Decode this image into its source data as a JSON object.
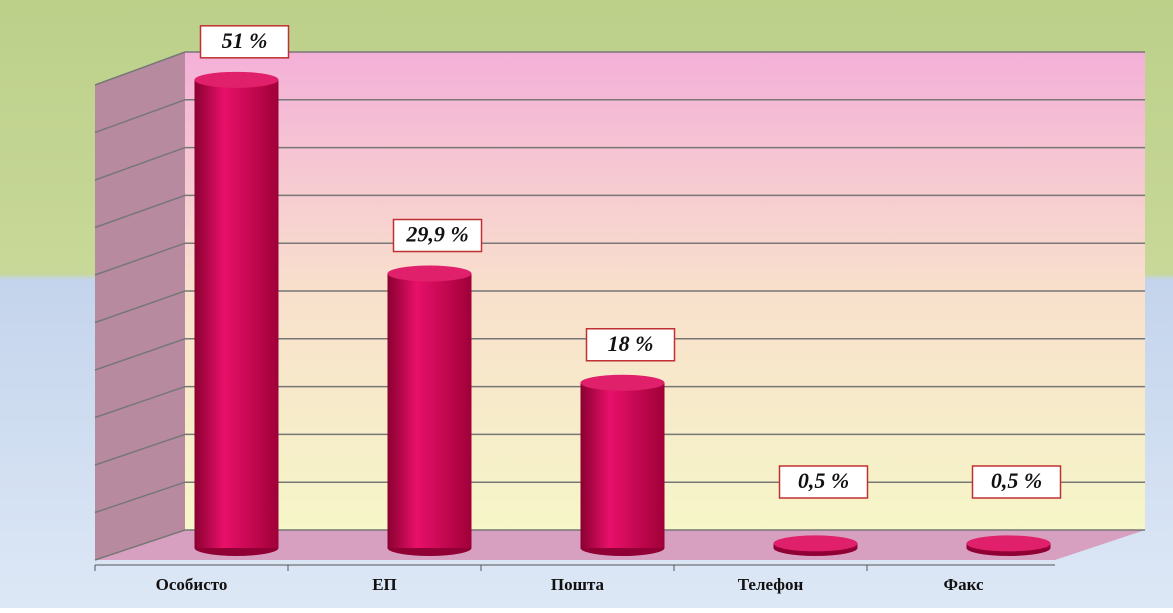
{
  "chart_data": {
    "type": "bar",
    "categories": [
      "Особисто",
      "ЕП",
      "Пошта",
      "Телефон",
      "Факс"
    ],
    "values": [
      51,
      29.9,
      18,
      0.5,
      0.5
    ],
    "value_labels": [
      "51 %",
      "29,9 %",
      "18 %",
      "0,5 %",
      "0,5 %"
    ],
    "color": "#d4004a",
    "ylim": [
      0,
      50
    ],
    "yticks": [
      0,
      5,
      10,
      15,
      20,
      25,
      30,
      35,
      40,
      45,
      50
    ],
    "grid": true
  }
}
